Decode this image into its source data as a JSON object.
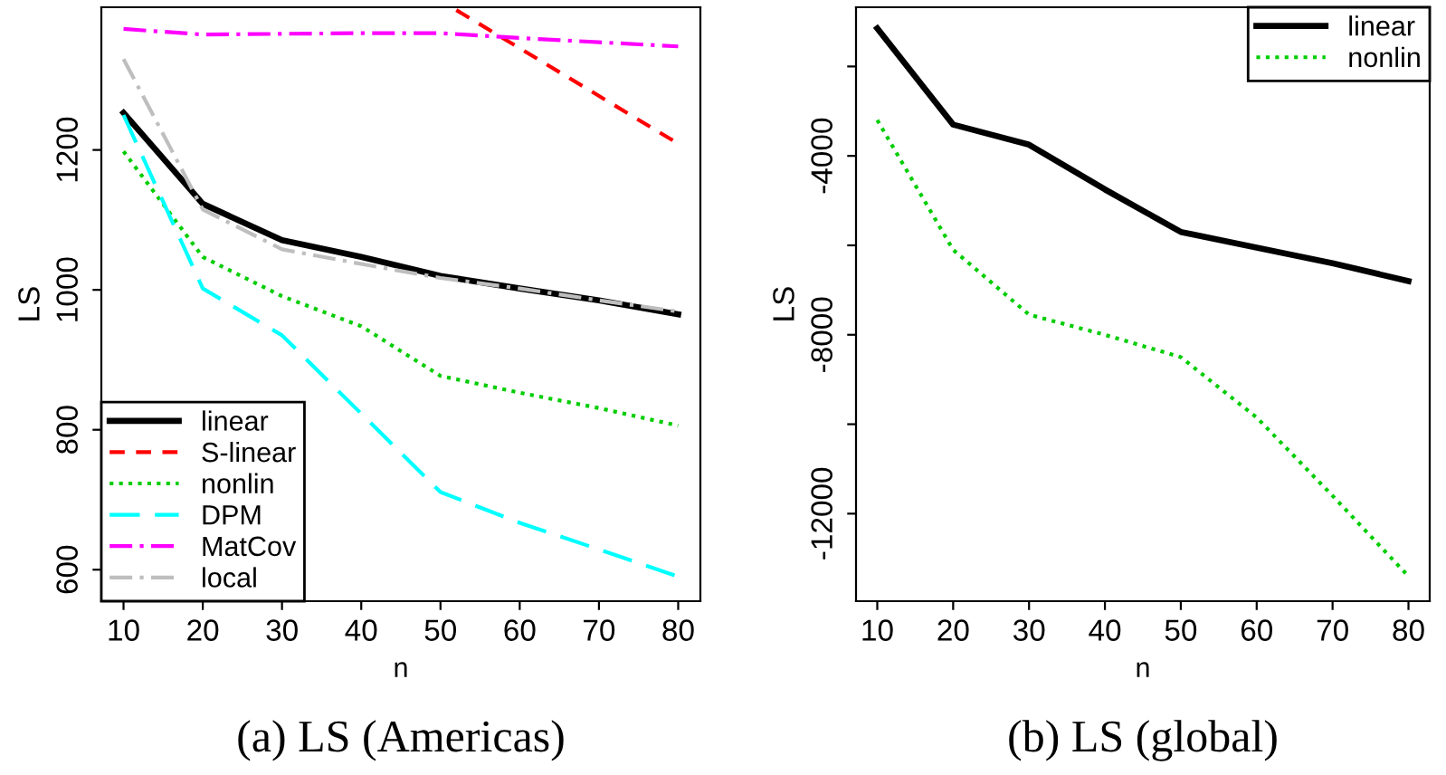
{
  "chart_data": [
    {
      "type": "line",
      "title": "(a) LS (Americas)",
      "xlabel": "n",
      "ylabel": "LS",
      "xlim": [
        7.2,
        82.8
      ],
      "xticks": [
        10,
        20,
        30,
        40,
        50,
        60,
        70,
        80
      ],
      "ylim": [
        555,
        1404
      ],
      "yticks": [
        600,
        800,
        1000,
        1200
      ],
      "grid": false,
      "legend": "bottom left",
      "marker": "none",
      "series": [
        {
          "name": "linear",
          "color": "#000000",
          "line_style": "solid",
          "x": [
            10,
            20,
            30,
            40,
            50,
            60,
            70,
            80
          ],
          "values": [
            1253,
            1123,
            1071,
            1047,
            1020,
            1002,
            985,
            965
          ]
        },
        {
          "name": "S-linear",
          "color": "#ff0000",
          "line_style": "dashed",
          "x": [
            52,
            80
          ],
          "values": [
            1400,
            1209
          ]
        },
        {
          "name": "nonlin",
          "color": "#00cd00",
          "line_style": "dotted",
          "x": [
            10,
            20,
            30,
            40,
            50,
            60,
            70,
            80
          ],
          "values": [
            1198,
            1047,
            991,
            948,
            877,
            853,
            831,
            806
          ]
        },
        {
          "name": "DPM",
          "color": "#00ffff",
          "line_style": "longdash",
          "x": [
            10,
            20,
            30,
            40,
            50,
            60,
            70,
            80
          ],
          "values": [
            1250,
            1002,
            935,
            823,
            711,
            667,
            629,
            590
          ]
        },
        {
          "name": "MatCov",
          "color": "#ff00ff",
          "line_style": "dashdot",
          "x": [
            10,
            20,
            30,
            40,
            50,
            60,
            70,
            80
          ],
          "values": [
            1373,
            1365,
            1366,
            1367,
            1367,
            1360,
            1354,
            1348
          ]
        },
        {
          "name": "local",
          "color": "#bebebe",
          "line_style": "dashdot",
          "x": [
            10,
            20,
            30,
            40,
            50,
            60,
            70,
            80
          ],
          "values": [
            1330,
            1115,
            1058,
            1037,
            1017,
            1002,
            985,
            969
          ]
        }
      ]
    },
    {
      "type": "line",
      "title": "(b) LS (global)",
      "xlabel": "n",
      "ylabel": "LS",
      "xlim": [
        7.2,
        82.8
      ],
      "xticks": [
        10,
        20,
        30,
        40,
        50,
        60,
        70,
        80
      ],
      "ylim": [
        -13957,
        -676
      ],
      "yticks": [
        {
          "value": -2000,
          "label": null
        },
        -4000,
        {
          "value": -6000,
          "label": null
        },
        -8000,
        {
          "value": -10000,
          "label": null
        },
        -12000
      ],
      "grid": false,
      "legend": "top right",
      "marker": "none",
      "series": [
        {
          "name": "linear",
          "color": "#000000",
          "line_style": "solid",
          "x": [
            10,
            20,
            30,
            40,
            50,
            60,
            70,
            80
          ],
          "values": [
            -1150,
            -3300,
            -3750,
            -4750,
            -5700,
            -6050,
            -6400,
            -6800
          ]
        },
        {
          "name": "nonlin",
          "color": "#00cd00",
          "line_style": "dotted",
          "x": [
            10,
            20,
            30,
            40,
            50,
            60,
            70,
            80
          ],
          "values": [
            -3200,
            -6100,
            -7550,
            -8000,
            -8500,
            -9850,
            -11600,
            -13400
          ]
        }
      ]
    }
  ]
}
